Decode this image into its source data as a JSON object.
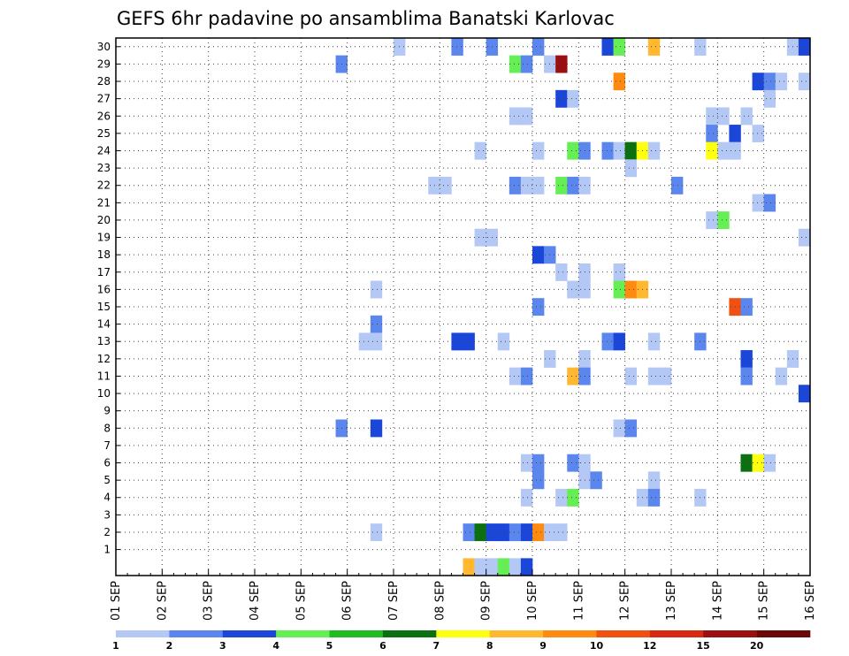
{
  "chart_data": {
    "type": "heatmap",
    "title": "GEFS 6hr padavine po ansamblima Banatski Karlovac",
    "xlabel": "",
    "ylabel": "",
    "x_categories": [
      "01 SEP",
      "02 SEP",
      "03 SEP",
      "04 SEP",
      "05 SEP",
      "06 SEP",
      "07 SEP",
      "08 SEP",
      "09 SEP",
      "10 SEP",
      "11 SEP",
      "12 SEP",
      "13 SEP",
      "14 SEP",
      "15 SEP",
      "16 SEP"
    ],
    "y_categories": [
      "1",
      "2",
      "3",
      "4",
      "5",
      "6",
      "7",
      "8",
      "9",
      "10",
      "11",
      "12",
      "13",
      "14",
      "15",
      "16",
      "17",
      "18",
      "19",
      "20",
      "21",
      "22",
      "23",
      "24",
      "25",
      "26",
      "27",
      "28",
      "29",
      "30"
    ],
    "x_step_hours": 6,
    "ylim": [
      0,
      30
    ],
    "grid": true,
    "colorbar": {
      "labels": [
        "1",
        "2",
        "3",
        "4",
        "5",
        "6",
        "7",
        "8",
        "9",
        "10",
        "12",
        "15",
        "20"
      ],
      "colors": [
        "#b4c8f6",
        "#5b86ee",
        "#1a46da",
        "#66ee55",
        "#22bb22",
        "#0a7010",
        "#ffff10",
        "#ffb830",
        "#ff8a10",
        "#f05010",
        "#d82a10",
        "#9a1010",
        "#6a0808"
      ]
    },
    "cells": [
      [
        30,
        25,
        1
      ],
      [
        30,
        30,
        2
      ],
      [
        30,
        33,
        2
      ],
      [
        30,
        37,
        2
      ],
      [
        30,
        43,
        3
      ],
      [
        30,
        44,
        4
      ],
      [
        30,
        47,
        8
      ],
      [
        30,
        51,
        1
      ],
      [
        30,
        59,
        1
      ],
      [
        30,
        60,
        3
      ],
      [
        29,
        20,
        2
      ],
      [
        29,
        35,
        4
      ],
      [
        29,
        36,
        2
      ],
      [
        29,
        38,
        1
      ],
      [
        29,
        39,
        12
      ],
      [
        28,
        44,
        9
      ],
      [
        28,
        56,
        3
      ],
      [
        28,
        57,
        2
      ],
      [
        28,
        58,
        1
      ],
      [
        28,
        60,
        1
      ],
      [
        27,
        39,
        3
      ],
      [
        27,
        40,
        1
      ],
      [
        27,
        57,
        1
      ],
      [
        26,
        35,
        1
      ],
      [
        26,
        36,
        1
      ],
      [
        26,
        52,
        1
      ],
      [
        26,
        53,
        1
      ],
      [
        26,
        55,
        1
      ],
      [
        25,
        52,
        2
      ],
      [
        25,
        54,
        3
      ],
      [
        25,
        56,
        1
      ],
      [
        24,
        32,
        1
      ],
      [
        24,
        37,
        1
      ],
      [
        24,
        40,
        4
      ],
      [
        24,
        41,
        2
      ],
      [
        24,
        43,
        2
      ],
      [
        24,
        44,
        1
      ],
      [
        24,
        45,
        6
      ],
      [
        24,
        46,
        7
      ],
      [
        24,
        47,
        1
      ],
      [
        24,
        52,
        7
      ],
      [
        24,
        53,
        1
      ],
      [
        24,
        54,
        1
      ],
      [
        23,
        45,
        1
      ],
      [
        22,
        28,
        1
      ],
      [
        22,
        29,
        1
      ],
      [
        22,
        35,
        2
      ],
      [
        22,
        36,
        1
      ],
      [
        22,
        37,
        1
      ],
      [
        22,
        39,
        4
      ],
      [
        22,
        40,
        2
      ],
      [
        22,
        41,
        1
      ],
      [
        22,
        49,
        2
      ],
      [
        21,
        56,
        1
      ],
      [
        21,
        57,
        2
      ],
      [
        20,
        52,
        1
      ],
      [
        20,
        53,
        4
      ],
      [
        19,
        32,
        1
      ],
      [
        19,
        33,
        1
      ],
      [
        19,
        60,
        1
      ],
      [
        18,
        37,
        3
      ],
      [
        18,
        38,
        2
      ],
      [
        17,
        39,
        1
      ],
      [
        17,
        41,
        1
      ],
      [
        17,
        44,
        1
      ],
      [
        16,
        23,
        1
      ],
      [
        16,
        40,
        1
      ],
      [
        16,
        41,
        1
      ],
      [
        16,
        44,
        4
      ],
      [
        16,
        45,
        9
      ],
      [
        16,
        46,
        8
      ],
      [
        15,
        37,
        2
      ],
      [
        15,
        54,
        10
      ],
      [
        15,
        55,
        2
      ],
      [
        14,
        23,
        2
      ],
      [
        13,
        22,
        1
      ],
      [
        13,
        23,
        1
      ],
      [
        13,
        30,
        3
      ],
      [
        13,
        31,
        3
      ],
      [
        13,
        34,
        1
      ],
      [
        13,
        43,
        2
      ],
      [
        13,
        44,
        3
      ],
      [
        13,
        47,
        1
      ],
      [
        13,
        51,
        2
      ],
      [
        12,
        38,
        1
      ],
      [
        12,
        41,
        1
      ],
      [
        12,
        55,
        3
      ],
      [
        12,
        59,
        1
      ],
      [
        11,
        35,
        1
      ],
      [
        11,
        36,
        2
      ],
      [
        11,
        40,
        8
      ],
      [
        11,
        41,
        2
      ],
      [
        11,
        45,
        1
      ],
      [
        11,
        47,
        1
      ],
      [
        11,
        48,
        1
      ],
      [
        11,
        55,
        2
      ],
      [
        11,
        58,
        1
      ],
      [
        10,
        60,
        3
      ],
      [
        8,
        20,
        2
      ],
      [
        8,
        23,
        3
      ],
      [
        8,
        44,
        1
      ],
      [
        8,
        45,
        2
      ],
      [
        6,
        36,
        1
      ],
      [
        6,
        37,
        2
      ],
      [
        6,
        40,
        2
      ],
      [
        6,
        41,
        1
      ],
      [
        6,
        55,
        6
      ],
      [
        6,
        56,
        7
      ],
      [
        6,
        57,
        1
      ],
      [
        5,
        37,
        2
      ],
      [
        5,
        41,
        1
      ],
      [
        5,
        42,
        2
      ],
      [
        5,
        47,
        1
      ],
      [
        4,
        36,
        1
      ],
      [
        4,
        39,
        1
      ],
      [
        4,
        40,
        4
      ],
      [
        4,
        46,
        1
      ],
      [
        4,
        47,
        2
      ],
      [
        4,
        51,
        1
      ],
      [
        2,
        23,
        1
      ],
      [
        2,
        31,
        2
      ],
      [
        2,
        32,
        6
      ],
      [
        2,
        33,
        3
      ],
      [
        2,
        34,
        3
      ],
      [
        2,
        35,
        2
      ],
      [
        2,
        36,
        3
      ],
      [
        2,
        37,
        9
      ],
      [
        2,
        38,
        1
      ],
      [
        2,
        39,
        1
      ],
      [
        0,
        31,
        8
      ],
      [
        0,
        32,
        1
      ],
      [
        0,
        33,
        1
      ],
      [
        0,
        34,
        4
      ],
      [
        0,
        35,
        1
      ],
      [
        0,
        36,
        3
      ]
    ]
  }
}
